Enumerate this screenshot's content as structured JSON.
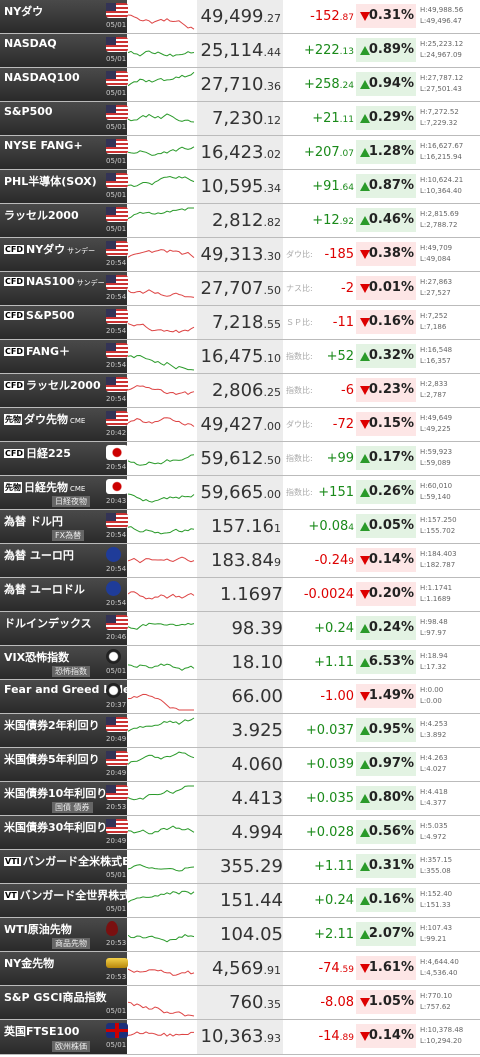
{
  "rows": [
    {
      "n": "NYダウ",
      "flag": "us",
      "t": "05/01",
      "v": "49,499",
      ".d": "",
      "d": ".27",
      "c": "-152",
      "cd": ".87",
      "p": "0.31%",
      "h": "H:49,988.56",
      "l": "L:49,496.47"
    },
    {
      "n": "NASDAQ",
      "flag": "us",
      "t": "05/01",
      "v": "25,114",
      "d": ".44",
      "c": "+222",
      "cd": ".13",
      "p": "0.89%",
      "h": "H:25,223.12",
      "l": "L:24,967.09"
    },
    {
      "n": "NASDAQ100",
      "flag": "us",
      "t": "05/01",
      "v": "27,710",
      "d": ".36",
      "c": "+258",
      "cd": ".24",
      "p": "0.94%",
      "h": "H:27,787.12",
      "l": "L:27,501.43"
    },
    {
      "n": "S&P500",
      "flag": "us",
      "t": "05/01",
      "v": "7,230",
      "d": ".12",
      "c": "+21",
      "cd": ".11",
      "p": "0.29%",
      "h": "H:7,272.52",
      "l": "L:7,229.32"
    },
    {
      "n": "NYSE FANG+",
      "flag": "us",
      "t": "05/01",
      "v": "16,423",
      "d": ".02",
      "c": "+207",
      "cd": ".07",
      "p": "1.28%",
      "h": "H:16,627.67",
      "l": "L:16,215.94"
    },
    {
      "n": "PHL半導体(SOX)",
      "flag": "us",
      "t": "05/01",
      "v": "10,595",
      "d": ".34",
      "c": "+91",
      "cd": ".64",
      "p": "0.87%",
      "h": "H:10,624.21",
      "l": "L:10,364.40"
    },
    {
      "n": "ラッセル2000",
      "flag": "us",
      "t": "05/01",
      "v": "2,812",
      "d": ".82",
      "c": "+12",
      "cd": ".92",
      "p": "0.46%",
      "h": "H:2,815.69",
      "l": "L:2,788.72"
    },
    {
      "tag": "CFD",
      "n": "NYダウ",
      "suf": "サンデー",
      "flag": "us",
      "t": "20:54",
      "v": "49,313",
      "d": ".30",
      "r": "ダウ比:",
      "c": "-185",
      "p": "0.38%",
      "h": "H:49,709",
      "l": "L:49,084"
    },
    {
      "tag": "CFD",
      "n": "NAS100",
      "suf": "サンデー",
      "flag": "us",
      "t": "20:54",
      "v": "27,707",
      "d": ".50",
      "r": "ナス比:",
      "c": "-2",
      "p": "0.01%",
      "h": "H:27,863",
      "l": "L:27,527"
    },
    {
      "tag": "CFD",
      "n": "S&P500",
      "flag": "us",
      "t": "20:54",
      "v": "7,218",
      "d": ".55",
      "r": "ＳＰ比:",
      "c": "-11",
      "p": "0.16%",
      "h": "H:7,252",
      "l": "L:7,186"
    },
    {
      "tag": "CFD",
      "n": "FANG＋",
      "flag": "us",
      "t": "20:54",
      "v": "16,475",
      "d": ".10",
      "r": "指数比:",
      "c": "+52",
      "p": "0.32%",
      "h": "H:16,548",
      "l": "L:16,357"
    },
    {
      "tag": "CFD",
      "n": "ラッセル2000",
      "flag": "us",
      "t": "20:54",
      "v": "2,806",
      "d": ".25",
      "r": "指数比:",
      "c": "-6",
      "p": "0.23%",
      "h": "H:2,833",
      "l": "L:2,787"
    },
    {
      "tag": "先物",
      "n": "ダウ先物",
      "suf": "CME",
      "flag": "us",
      "t": "20:42",
      "v": "49,427",
      "d": ".00",
      "r": "ダウ比:",
      "c": "-72",
      "p": "0.15%",
      "h": "H:49,649",
      "l": "L:49,225"
    },
    {
      "tag": "CFD",
      "n": "日経225",
      "flag": "jp",
      "t": "20:54",
      "v": "59,612",
      "d": ".50",
      "r": "指数比:",
      "c": "+99",
      "p": "0.17%",
      "h": "H:59,923",
      "l": "L:59,089"
    },
    {
      "tag": "先物",
      "n": "日経先物",
      "suf": "CME",
      "sub": "日経夜物",
      "flag": "jp",
      "t": "20:43",
      "v": "59,665",
      "d": ".00",
      "r": "指数比:",
      "c": "+151",
      "p": "0.26%",
      "h": "H:60,010",
      "l": "L:59,140"
    },
    {
      "n": "為替 ドル円",
      "sub": "FX為替",
      "flag": "us",
      "t": "20:54",
      "v": "157.16",
      "d": "1",
      "c": "+0.08",
      "cd": "4",
      "p": "0.05%",
      "h": "H:157.250",
      "l": "L:155.702"
    },
    {
      "n": "為替 ユーロ円",
      "flag": "eu",
      "t": "20:54",
      "v": "183.84",
      "d": "9",
      "c": "-0.24",
      "cd": "9",
      "p": "0.14%",
      "h": "H:184.403",
      "l": "L:182.787"
    },
    {
      "n": "為替 ユーロドル",
      "flag": "eu",
      "t": "20:54",
      "v": "1.1697",
      "d": "",
      "c": "-0.0024",
      "cd": "",
      "p": "0.20%",
      "h": "H:1.1741",
      "l": "L:1.1689"
    },
    {
      "n": "ドルインデックス",
      "flag": "us",
      "t": "20:46",
      "v": "98.39",
      "d": "",
      "c": "+0.24",
      "cd": "",
      "p": "0.24%",
      "h": "H:98.48",
      "l": "L:97.97"
    },
    {
      "n": "VIX恐怖指数",
      "sub": "恐怖指数",
      "flag": "vix",
      "t": "05/01",
      "v": "18.10",
      "d": "",
      "c": "+1.11",
      "cd": "",
      "p": "6.53%",
      "h": "H:18.94",
      "l": "L:17.32"
    },
    {
      "n": "Fear and Greed Index",
      "flag": "vix",
      "t": "20:37",
      "v": "66.00",
      "d": "",
      "c": "-1.00",
      "cd": "",
      "p": "1.49%",
      "h": "H:0.00",
      "l": "L:0.00"
    },
    {
      "n": "米国債券2年利回り",
      "flag": "us",
      "t": "20:49",
      "v": "3.925",
      "d": "",
      "c": "+0.037",
      "cd": "",
      "p": "0.95%",
      "h": "H:4.253",
      "l": "L:3.892"
    },
    {
      "n": "米国債券5年利回り",
      "flag": "us",
      "t": "20:49",
      "v": "4.060",
      "d": "",
      "c": "+0.039",
      "cd": "",
      "p": "0.97%",
      "h": "H:4.263",
      "l": "L:4.027"
    },
    {
      "n": "米国債券10年利回り",
      "sub": "国債 債券",
      "flag": "us",
      "t": "20:53",
      "v": "4.413",
      "d": "",
      "c": "+0.035",
      "cd": "",
      "p": "0.80%",
      "h": "H:4.418",
      "l": "L:4.377"
    },
    {
      "n": "米国債券30年利回り",
      "flag": "us",
      "t": "20:49",
      "v": "4.994",
      "d": "",
      "c": "+0.028",
      "cd": "",
      "p": "0.56%",
      "h": "H:5.035",
      "l": "L:4.972"
    },
    {
      "tag": "VTI",
      "n": "バンガード全米株式ETF",
      "t": "05/01",
      "v": "355.29",
      "d": "",
      "c": "+1.11",
      "cd": "",
      "p": "0.31%",
      "h": "H:357.15",
      "l": "L:355.08"
    },
    {
      "tag": "VT",
      "n": "バンガード全世界株式ETF",
      "t": "05/01",
      "v": "151.44",
      "d": "",
      "c": "+0.24",
      "cd": "",
      "p": "0.16%",
      "h": "H:152.40",
      "l": "L:151.33"
    },
    {
      "n": "WTI原油先物",
      "sub": "商品先物",
      "flag": "oil",
      "t": "20:53",
      "v": "104.05",
      "d": "",
      "c": "+2.11",
      "cd": "",
      "p": "2.07%",
      "h": "H:107.43",
      "l": "L:99.21"
    },
    {
      "n": "NY金先物",
      "flag": "gold",
      "t": "20:53",
      "v": "4,569",
      "d": ".91",
      "c": "-74",
      "cd": ".59",
      "p": "1.61%",
      "h": "H:4,644.40",
      "l": "L:4,536.40"
    },
    {
      "n": "S&P GSCI商品指数",
      "t": "05/01",
      "v": "760",
      "d": ".35",
      "c": "-8.08",
      "cd": "",
      "p": "1.05%",
      "h": "H:770.10",
      "l": "L:757.62"
    },
    {
      "n": "英国FTSE100",
      "sub": "欧州株価",
      "flag": "uk",
      "t": "05/01",
      "v": "10,363",
      "d": ".93",
      "c": "-14",
      "cd": ".89",
      "p": "0.14%",
      "h": "H:10,378.48",
      "l": "L:10,294.20"
    }
  ]
}
